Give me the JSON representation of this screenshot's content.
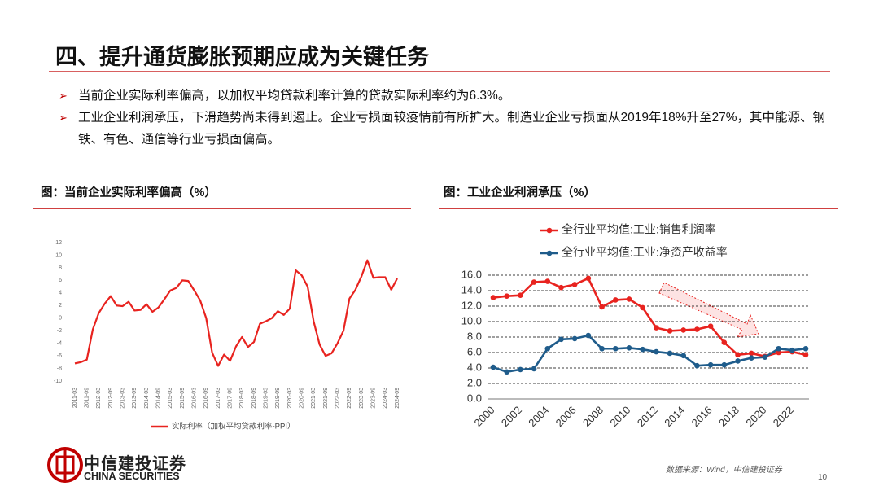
{
  "title": "四、提升通货膨胀预期应成为关键任务",
  "bullets": [
    "当前企业实际利率偏高，以加权平均贷款利率计算的贷款实际利率约为6.3%。",
    "工业企业利润承压，下滑趋势尚未得到遏止。企业亏损面较疫情前有所扩大。制造业企业亏损面从2019年18%升至27%，其中能源、钢铁、有色、通信等行业亏损面偏高。"
  ],
  "logo": {
    "name": "中信建投证券",
    "english": "CHINA SECURITIES"
  },
  "source": "数据来源：Wind，中信建投证券",
  "page_number": "10",
  "chart_data": [
    {
      "type": "line",
      "title": "图：当前企业实际利率偏高（%）",
      "categories": [
        "2011-03",
        null,
        "2011-09",
        null,
        "2012-03",
        null,
        "2012-09",
        null,
        "2013-03",
        null,
        "2013-09",
        null,
        "2014-03",
        null,
        "2014-09",
        null,
        "2015-03",
        null,
        "2015-09",
        null,
        "2016-03",
        null,
        "2016-09",
        null,
        "2017-03",
        null,
        "2017-09",
        null,
        "2018-03",
        null,
        "2018-09",
        null,
        "2019-03",
        null,
        "2019-09",
        null,
        "2020-03",
        null,
        "2020-09",
        null,
        "2021-03",
        null,
        "2021-09",
        null,
        "2022-03",
        null,
        "2022-09",
        null,
        "2023-03",
        null,
        "2023-09",
        null,
        "2024-03",
        null,
        "2024-09"
      ],
      "series": [
        {
          "name": "实际利率（加权平均贷款利率-PPI）",
          "color": "#e8231f",
          "values": [
            -7.2,
            -7.0,
            -6.6,
            -1.8,
            0.8,
            2.3,
            3.5,
            2.0,
            1.9,
            2.6,
            1.2,
            1.3,
            2.2,
            1.0,
            1.7,
            3.0,
            4.4,
            4.8,
            6.0,
            5.9,
            4.4,
            2.8,
            0.0,
            -5.5,
            -7.6,
            -5.8,
            -6.8,
            -4.5,
            -3.0,
            -4.6,
            -3.8,
            -0.9,
            -0.5,
            0.0,
            1.1,
            0.5,
            1.5,
            7.6,
            6.8,
            5.0,
            -0.5,
            -4.2,
            -6.0,
            -5.6,
            -4.0,
            -2.0,
            3.1,
            4.5,
            6.6,
            9.2,
            6.4,
            6.5,
            6.5,
            4.5,
            6.3
          ]
        }
      ],
      "ylim": [
        -10,
        12
      ],
      "yticks": [
        -10,
        -8,
        -6,
        -4,
        -2,
        0,
        2,
        4,
        6,
        8,
        10,
        12
      ],
      "grid": false,
      "markers": false,
      "legend": "bottom"
    },
    {
      "type": "line",
      "title": "图：工业企业利润承压（%）",
      "categories": [
        "2000",
        null,
        "2002",
        null,
        "2004",
        null,
        "2006",
        null,
        "2008",
        null,
        "2010",
        null,
        "2012",
        null,
        "2014",
        null,
        "2016",
        null,
        "2018",
        null,
        "2020",
        null,
        "2022",
        null
      ],
      "series": [
        {
          "name": "全行业平均值:工业:销售利润率",
          "color": "#e8231f",
          "values": [
            13.1,
            13.3,
            13.4,
            15.1,
            15.2,
            14.4,
            14.8,
            15.6,
            11.9,
            12.8,
            12.9,
            11.8,
            9.2,
            8.8,
            8.9,
            9.0,
            9.4,
            7.3,
            5.7,
            5.9,
            5.5,
            6.0,
            6.1,
            5.7
          ]
        },
        {
          "name": "全行业平均值:工业:净资产收益率",
          "color": "#1f5c8b",
          "values": [
            4.1,
            3.5,
            3.8,
            3.9,
            6.5,
            7.7,
            7.8,
            8.2,
            6.5,
            6.5,
            6.6,
            6.4,
            6.1,
            5.9,
            5.6,
            4.3,
            4.4,
            4.4,
            4.9,
            5.3,
            5.4,
            6.5,
            6.3,
            6.5
          ]
        }
      ],
      "ylim": [
        0,
        16
      ],
      "yticks": [
        {
          "value": 0,
          "label": "0.0"
        },
        {
          "value": 2,
          "label": "2.0"
        },
        {
          "value": 4,
          "label": "4.0"
        },
        {
          "value": 6,
          "label": "6.0"
        },
        {
          "value": 8,
          "label": "8.0"
        },
        {
          "value": 10,
          "label": "10.0"
        },
        {
          "value": 12,
          "label": "12.0"
        },
        {
          "value": 14,
          "label": "14.0"
        },
        {
          "value": 16,
          "label": "16.0"
        }
      ],
      "grid": true,
      "markers": true,
      "legend": "top-left"
    }
  ]
}
